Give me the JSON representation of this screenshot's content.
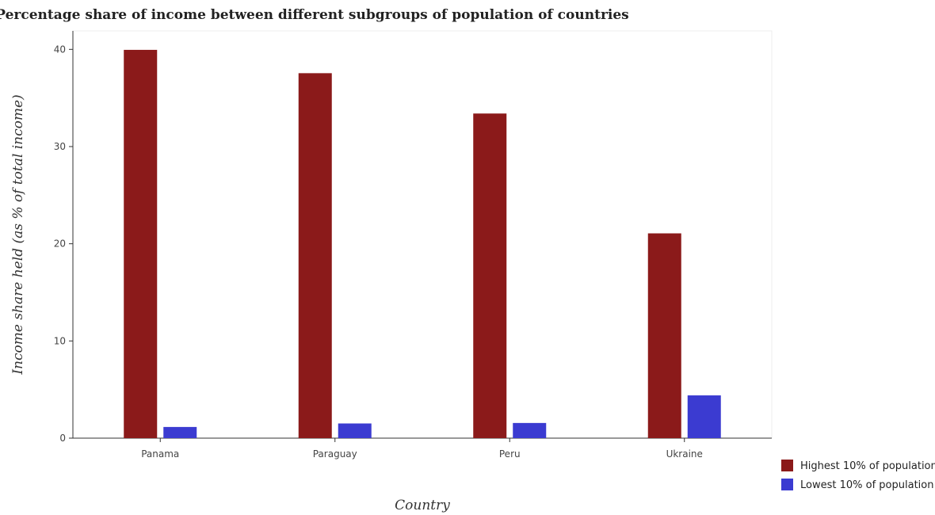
{
  "chart_data": {
    "type": "bar",
    "title": "Percentage share of income between different subgroups of population of countries",
    "xlabel": "Country",
    "ylabel": "Income share held (as % of total income)",
    "categories": [
      "Panama",
      "Paraguay",
      "Peru",
      "Ukraine"
    ],
    "series": [
      {
        "name": "Highest 10% of population",
        "color": "#8b1a1a",
        "values": [
          39.95,
          37.55,
          33.4,
          21.07
        ]
      },
      {
        "name": "Lowest 10% of population",
        "color": "#3b3bd1",
        "values": [
          1.15,
          1.51,
          1.56,
          4.4
        ]
      }
    ],
    "yticks": [
      0,
      10,
      20,
      30,
      40
    ],
    "ylim": [
      0,
      41.9
    ],
    "grid": false,
    "legend_position": "bottom-right"
  }
}
